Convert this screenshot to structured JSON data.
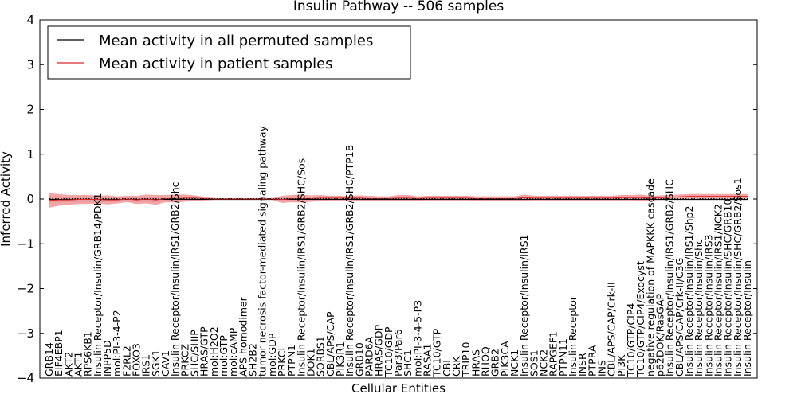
{
  "chart_data": {
    "type": "line",
    "title": "Insulin Pathway -- 506 samples",
    "xlabel": "Cellular Entities",
    "ylabel": "Inferred Activity",
    "ylim": [
      -4,
      4
    ],
    "yticks": [
      -4,
      -3,
      -2,
      -1,
      0,
      1,
      2,
      3,
      4
    ],
    "ytick_labels": [
      "−4",
      "−3",
      "−2",
      "−1",
      "0",
      "1",
      "2",
      "3",
      "4"
    ],
    "legend_position": "top-left",
    "categories": [
      "GRB14",
      "EIF4EBP1",
      "AKT2",
      "AKT1",
      "RPS6KB1",
      "Insulin Receptor/Insulin/GRB14/PDK1",
      "INPP5D",
      "mol:PI-3-4-P2",
      "F2RL2",
      "FOXO3",
      "IRS1",
      "SGK1",
      "CAV1",
      "Insulin Receptor/Insulin/IRS1/GRB2/Shc",
      "PRKCZ",
      "SHC/SHIP",
      "HRAS/GTP",
      "mol:H2O2",
      "mol:GTP",
      "mol:cAMP",
      "APS homodimer",
      "SH2B2",
      "tumor necrosis factor-mediated signaling pathway",
      "mol:GDP",
      "PRKCI",
      "PTPN1",
      "Insulin Receptor/Insulin/IRS1/GRB2/SHC/Sos",
      "DOK1",
      "SORBS1",
      "CBL/APS/CAP",
      "PIK3R1",
      "Insulin Receptor/Insulin/IRS1/GRB2/SHC/PTP1B",
      "GRB10",
      "PARD6A",
      "HRAS/GDP",
      "TC10/GDP",
      "Par3/Par6",
      "SHC1",
      "mol:PI-3-4-5-P3",
      "RASA1",
      "TC10/GTP",
      "CBL",
      "CRK",
      "TRIP10",
      "HRAS",
      "RHOQ",
      "GRB2",
      "PIK3CA",
      "NCK1",
      "Insulin Receptor/Insulin/IRS1",
      "SOS1",
      "NCK2",
      "RAPGEF1",
      "PTPN11",
      "Insulin Receptor",
      "INSR",
      "PTPRA",
      "INS",
      "CBL/APS/CAP/Crk-II",
      "PI3K",
      "TC10/GTP/CIP4",
      "TC10/GTP/CIP4/Exocyst",
      "negative regulation of MAPKKK cascade",
      "p62DOK/RasGAP",
      "Insulin Receptor/Insulin/IRS1/GRB2/SHC",
      "CBL/APS/CAP/Crk-II/C3G",
      "Insulin Receptor/Insulin/IRS1/Shp2",
      "Insulin Receptor/Insulin/Shc",
      "Insulin Receptor/Insulin/IRS3",
      "Insulin Receptor/Insulin/IRS1/NCK2",
      "Insulin Receptor/Insulin/SHC/GRB10",
      "Insulin Receptor/Insulin/SHC/GRB2/Sos1",
      "Insulin Receptor/Insulin"
    ],
    "series": [
      {
        "name": "Mean activity in all permuted samples",
        "color": "#000000",
        "band_color": "#b3b3cc",
        "values": [
          -0.01,
          -0.01,
          -0.01,
          -0.01,
          -0.01,
          -0.01,
          -0.01,
          -0.01,
          -0.01,
          -0.01,
          -0.01,
          -0.01,
          -0.01,
          -0.01,
          -0.01,
          -0.01,
          -0.01,
          -0.01,
          -0.01,
          -0.01,
          -0.01,
          -0.01,
          -0.01,
          -0.01,
          -0.01,
          -0.01,
          -0.01,
          -0.01,
          -0.01,
          -0.01,
          -0.01,
          -0.01,
          -0.01,
          -0.01,
          -0.01,
          -0.01,
          -0.01,
          -0.01,
          -0.01,
          -0.01,
          -0.01,
          -0.01,
          -0.01,
          -0.01,
          -0.01,
          -0.01,
          -0.01,
          -0.01,
          -0.01,
          -0.01,
          -0.01,
          -0.01,
          -0.01,
          -0.01,
          -0.01,
          -0.01,
          -0.01,
          -0.01,
          -0.01,
          -0.01,
          -0.01,
          -0.01,
          -0.01,
          -0.01,
          -0.01,
          -0.01,
          -0.01,
          -0.01,
          -0.01,
          -0.01,
          -0.01,
          -0.01,
          -0.01
        ],
        "band": [
          0.08,
          0.07,
          0.06,
          0.06,
          0.06,
          0.06,
          0.06,
          0.05,
          0.05,
          0.06,
          0.06,
          0.06,
          0.05,
          0.05,
          0.05,
          0.04,
          0.03,
          0.02,
          0.02,
          0.02,
          0.02,
          0.02,
          0.02,
          0.02,
          0.05,
          0.05,
          0.05,
          0.04,
          0.04,
          0.03,
          0.03,
          0.03,
          0.04,
          0.04,
          0.03,
          0.03,
          0.04,
          0.04,
          0.03,
          0.03,
          0.03,
          0.03,
          0.03,
          0.03,
          0.03,
          0.03,
          0.03,
          0.03,
          0.03,
          0.04,
          0.03,
          0.03,
          0.03,
          0.03,
          0.03,
          0.03,
          0.03,
          0.03,
          0.03,
          0.03,
          0.03,
          0.03,
          0.03,
          0.03,
          0.03,
          0.03,
          0.03,
          0.03,
          0.03,
          0.03,
          0.03,
          0.03,
          0.03
        ]
      },
      {
        "name": "Mean activity in patient samples",
        "color": "#d62728",
        "band_color": "#f08080",
        "values": [
          -0.03,
          -0.02,
          -0.02,
          -0.01,
          -0.01,
          -0.01,
          -0.02,
          -0.02,
          0.0,
          -0.02,
          0.0,
          -0.02,
          0.01,
          0.01,
          0.02,
          0.02,
          0.01,
          0.0,
          0.0,
          0.0,
          0.0,
          0.0,
          0.0,
          0.0,
          -0.01,
          0.01,
          0.01,
          0.01,
          0.02,
          0.02,
          0.02,
          0.02,
          0.02,
          0.01,
          0.01,
          0.01,
          0.02,
          0.02,
          0.01,
          0.02,
          0.02,
          0.02,
          0.02,
          0.02,
          0.01,
          0.01,
          0.01,
          0.01,
          0.01,
          0.03,
          0.02,
          0.02,
          0.02,
          0.02,
          0.02,
          0.02,
          0.02,
          0.02,
          0.02,
          0.03,
          0.03,
          0.03,
          0.02,
          0.03,
          0.04,
          0.05,
          0.06,
          0.06,
          0.06,
          0.06,
          0.06,
          0.06,
          0.06
        ],
        "band": [
          0.16,
          0.13,
          0.11,
          0.1,
          0.1,
          0.09,
          0.1,
          0.08,
          0.07,
          0.09,
          0.1,
          0.11,
          0.08,
          0.09,
          0.08,
          0.06,
          0.04,
          0.02,
          0.02,
          0.02,
          0.02,
          0.02,
          0.02,
          0.02,
          0.08,
          0.08,
          0.09,
          0.07,
          0.07,
          0.05,
          0.05,
          0.05,
          0.06,
          0.06,
          0.05,
          0.05,
          0.07,
          0.07,
          0.05,
          0.05,
          0.05,
          0.05,
          0.05,
          0.05,
          0.05,
          0.05,
          0.05,
          0.05,
          0.05,
          0.07,
          0.05,
          0.05,
          0.05,
          0.05,
          0.05,
          0.05,
          0.05,
          0.05,
          0.05,
          0.06,
          0.06,
          0.07,
          0.05,
          0.05,
          0.05,
          0.05,
          0.05,
          0.05,
          0.05,
          0.05,
          0.05,
          0.05,
          0.05
        ]
      }
    ]
  }
}
